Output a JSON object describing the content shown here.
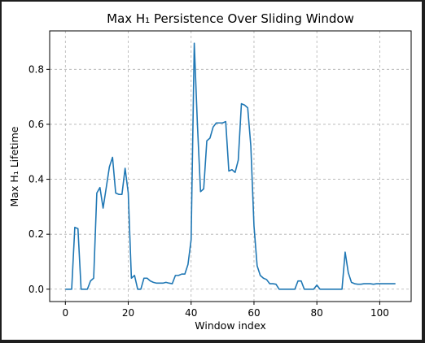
{
  "chart_data": {
    "type": "line",
    "title": "Max H₁ Persistence Over Sliding Window",
    "xlabel": "Window index",
    "ylabel": "Max H₁ Lifetime",
    "xlim": [
      -5,
      110
    ],
    "ylim": [
      -0.045,
      0.94
    ],
    "xticks": [
      0,
      20,
      40,
      60,
      80,
      100
    ],
    "yticks": [
      0.0,
      0.2,
      0.4,
      0.6,
      0.8
    ],
    "ytick_labels": [
      "0.0",
      "0.2",
      "0.4",
      "0.6",
      "0.8"
    ],
    "grid": true,
    "line_color": "#1f77b4",
    "series": [
      {
        "x": [
          0,
          1,
          2,
          3,
          4,
          5,
          6,
          7,
          8,
          9,
          10,
          11,
          12,
          13,
          14,
          15,
          16,
          17,
          18,
          19,
          20,
          21,
          22,
          23,
          24,
          25,
          26,
          27,
          28,
          29,
          30,
          31,
          32,
          33,
          34,
          35,
          36,
          37,
          38,
          39,
          40,
          41,
          42,
          43,
          44,
          45,
          46,
          47,
          48,
          49,
          50,
          51,
          52,
          53,
          54,
          55,
          56,
          57,
          58,
          59,
          60,
          61,
          62,
          63,
          64,
          65,
          66,
          67,
          68,
          69,
          70,
          71,
          72,
          73,
          74,
          75,
          76,
          77,
          78,
          79,
          80,
          81,
          82,
          83,
          84,
          85,
          86,
          87,
          88,
          89,
          90,
          91,
          92,
          93,
          94,
          95,
          96,
          97,
          98,
          99,
          100,
          101,
          102,
          103,
          104,
          105
        ],
        "y": [
          0.0,
          0.0,
          0.0,
          0.225,
          0.22,
          0.0,
          0.0,
          0.0,
          0.03,
          0.04,
          0.35,
          0.37,
          0.295,
          0.37,
          0.445,
          0.48,
          0.35,
          0.345,
          0.345,
          0.44,
          0.35,
          0.04,
          0.05,
          0.0,
          0.0,
          0.04,
          0.04,
          0.03,
          0.025,
          0.022,
          0.022,
          0.022,
          0.025,
          0.022,
          0.02,
          0.05,
          0.05,
          0.055,
          0.055,
          0.09,
          0.18,
          0.895,
          0.6,
          0.355,
          0.365,
          0.54,
          0.55,
          0.59,
          0.605,
          0.605,
          0.605,
          0.61,
          0.43,
          0.435,
          0.425,
          0.47,
          0.675,
          0.67,
          0.66,
          0.52,
          0.23,
          0.085,
          0.05,
          0.04,
          0.035,
          0.02,
          0.02,
          0.018,
          0.0,
          0.0,
          0.0,
          0.0,
          0.0,
          0.0,
          0.03,
          0.03,
          0.0,
          0.0,
          0.0,
          0.0,
          0.015,
          0.0,
          0.0,
          0.0,
          0.0,
          0.0,
          0.0,
          0.0,
          0.0,
          0.135,
          0.06,
          0.025,
          0.02,
          0.018,
          0.018,
          0.02,
          0.02,
          0.02,
          0.018,
          0.02,
          0.02,
          0.02,
          0.02,
          0.02,
          0.02,
          0.02
        ]
      }
    ]
  }
}
